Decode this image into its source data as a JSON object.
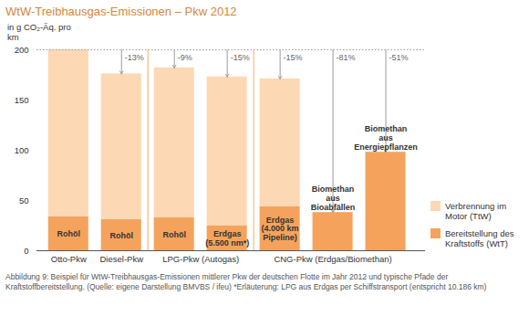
{
  "chart_data": {
    "type": "bar",
    "title": "WtW-Treibhausgas-Emissionen – Pkw 2012",
    "y_label": "in g CO₂-Äq. pro km",
    "caption": "Abbildung 9: Beispiel für WtW-Treibhausgas-Emissionen mittlerer Pkw der deutschen Flotte im Jahr 2012 und typische Pfade der Kraftstoffbereitstellung. (Quelle: eigene Darstellung BMVBS / ifeu) *Erläuterung: LPG aus Erdgas per Schiffstransport (entspricht 10.186 km)",
    "categories": [
      "Rohöl",
      "Rohöl",
      "Rohöl",
      "Erdgas (5.500 nm*)",
      "Erdgas (4.000 km Pipeline)",
      "Biomethan aus Bioabfällen",
      "Biomethan aus Energiepflanzen"
    ],
    "groups": [
      "Otto-Pkw",
      "Diesel-Pkw",
      "LPG-Pkw (Autogas)",
      "LPG-Pkw (Autogas)",
      "CNG-Pkw (Erdgas/Biomethan)",
      "CNG-Pkw (Erdgas/Biomethan)",
      "CNG-Pkw (Erdgas/Biomethan)"
    ],
    "annotations": [
      null,
      "-13%",
      "-9%",
      "-15%",
      "-15%",
      "-81%",
      "-51%"
    ],
    "series": [
      {
        "name": "Verbrennung im Motor (TtW)",
        "color": "#fdd8b5",
        "values": [
          166,
          145,
          149,
          148,
          127,
          0,
          0
        ]
      },
      {
        "name": "Bereitstellung des Kraftstoffs (WtT)",
        "color": "#f5a35c",
        "values": [
          34,
          31,
          33,
          25,
          44,
          38,
          98
        ]
      }
    ],
    "ylim": [
      0,
      200
    ],
    "yticks": [
      0,
      50,
      100,
      150,
      200
    ],
    "stacked": true,
    "grid": false,
    "legend": "right"
  }
}
